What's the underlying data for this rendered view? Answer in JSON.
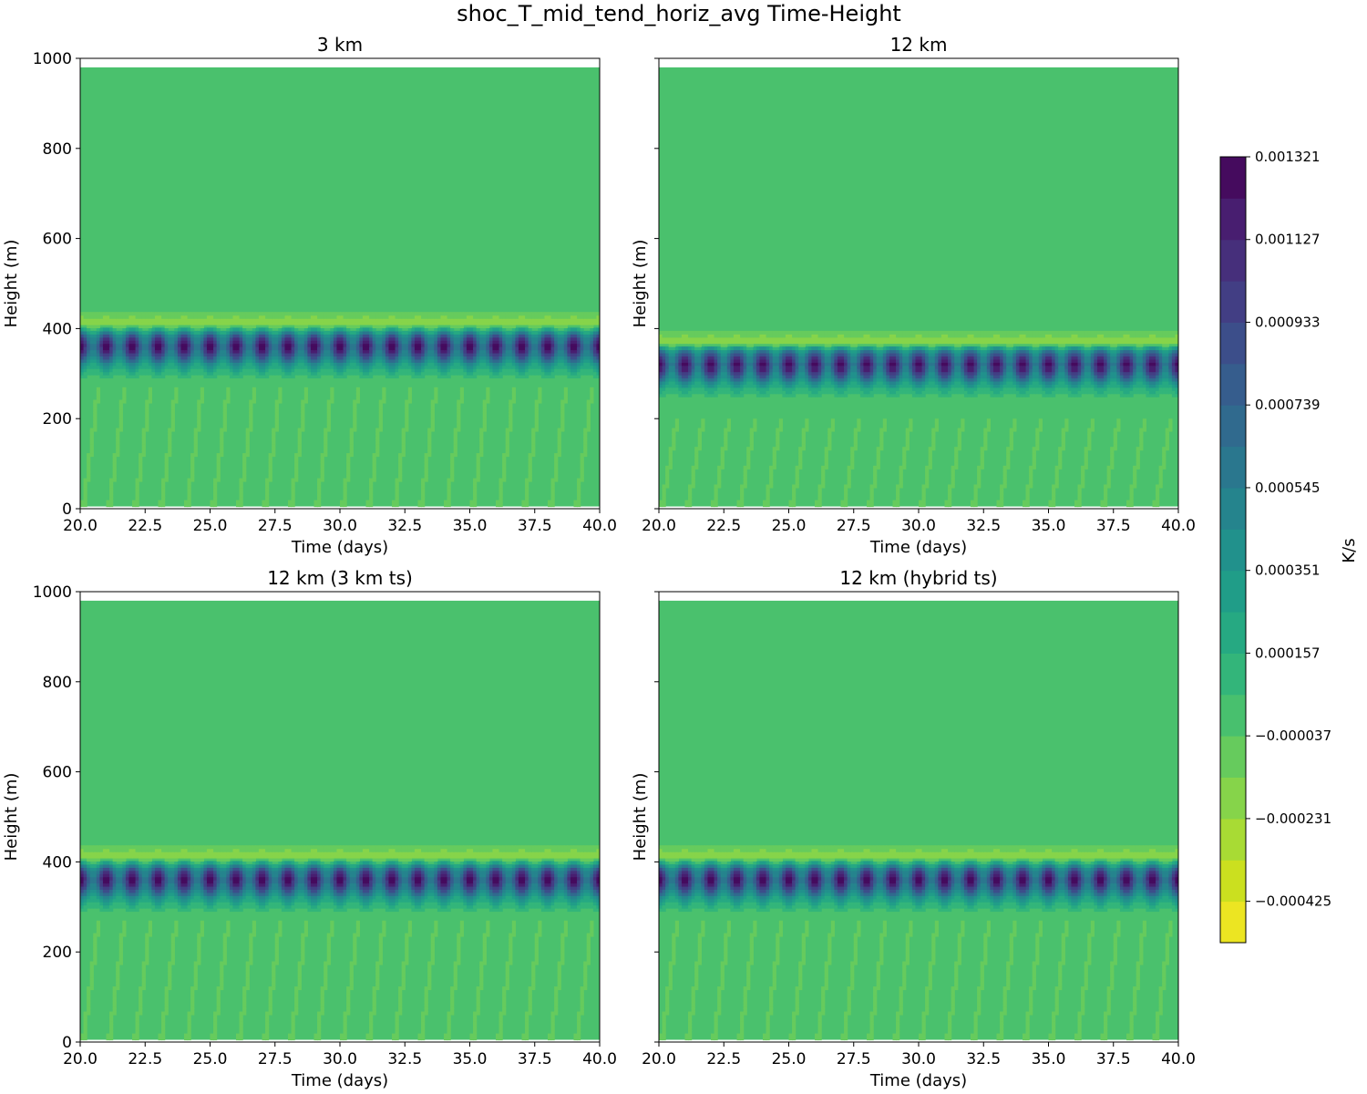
{
  "figure": {
    "suptitle": "shoc_T_mid_tend_horiz_avg Time-Height"
  },
  "chart_data": [
    {
      "type": "heatmap",
      "title": "3 km",
      "xlabel": "Time (days)",
      "ylabel": "Height (m)",
      "xlim": [
        20,
        40
      ],
      "ylim": [
        0,
        1000
      ],
      "xticks": [
        "20.0",
        "22.5",
        "25.0",
        "27.5",
        "30.0",
        "32.5",
        "35.0",
        "37.5",
        "40.0"
      ],
      "yticks": [
        "0",
        "200",
        "400",
        "600",
        "800",
        "1000"
      ],
      "domain_top": 980,
      "min_band": {
        "center": 410,
        "halfwidth": 22
      },
      "max_band": {
        "center": 363,
        "halfwidth": 45
      },
      "bottom_streak_top": 270,
      "oscillations": 20
    },
    {
      "type": "heatmap",
      "title": "12 km",
      "xlabel": "Time (days)",
      "ylabel": "Height (m)",
      "xlim": [
        20,
        40
      ],
      "ylim": [
        0,
        1000
      ],
      "xticks": [
        "20.0",
        "22.5",
        "25.0",
        "27.5",
        "30.0",
        "32.5",
        "35.0",
        "37.5",
        "40.0"
      ],
      "yticks": [
        "0",
        "200",
        "400",
        "600",
        "800",
        "1000"
      ],
      "domain_top": 980,
      "min_band": {
        "center": 370,
        "halfwidth": 20
      },
      "max_band": {
        "center": 322,
        "halfwidth": 45
      },
      "bottom_streak_top": 200,
      "oscillations": 20
    },
    {
      "type": "heatmap",
      "title": "12 km (3 km ts)",
      "xlabel": "Time (days)",
      "ylabel": "Height (m)",
      "xlim": [
        20,
        40
      ],
      "ylim": [
        0,
        1000
      ],
      "xticks": [
        "20.0",
        "22.5",
        "25.0",
        "27.5",
        "30.0",
        "32.5",
        "35.0",
        "37.5",
        "40.0"
      ],
      "yticks": [
        "0",
        "200",
        "400",
        "600",
        "800",
        "1000"
      ],
      "domain_top": 980,
      "min_band": {
        "center": 410,
        "halfwidth": 22
      },
      "max_band": {
        "center": 363,
        "halfwidth": 45
      },
      "bottom_streak_top": 270,
      "oscillations": 20
    },
    {
      "type": "heatmap",
      "title": "12 km (hybrid ts)",
      "xlabel": "Time (days)",
      "ylabel": "Height (m)",
      "xlim": [
        20,
        40
      ],
      "ylim": [
        0,
        1000
      ],
      "xticks": [
        "20.0",
        "22.5",
        "25.0",
        "27.5",
        "30.0",
        "32.5",
        "35.0",
        "37.5",
        "40.0"
      ],
      "yticks": [
        "0",
        "200",
        "400",
        "600",
        "800",
        "1000"
      ],
      "domain_top": 980,
      "min_band": {
        "center": 410,
        "halfwidth": 22
      },
      "max_band": {
        "center": 363,
        "halfwidth": 45
      },
      "bottom_streak_top": 270,
      "oscillations": 20
    }
  ],
  "colorbar": {
    "label": "K/s",
    "min": -0.000522,
    "max": 0.001321,
    "tick_values": [
      0.001321,
      0.001127,
      0.000933,
      0.000739,
      0.000545,
      0.000351,
      0.000157,
      -3.7e-05,
      -0.000231,
      -0.000425
    ],
    "tick_labels": [
      "0.001321",
      "0.001127",
      "0.000933",
      "0.000739",
      "0.000545",
      "0.000351",
      "0.000157",
      "−0.000037",
      "−0.000231",
      "−0.000425"
    ],
    "levels": 19,
    "colors": [
      "#fde725",
      "#d0e11c",
      "#a0da39",
      "#73d056",
      "#4ac16d",
      "#2db27d",
      "#1fa187",
      "#21918c",
      "#277f8e",
      "#2e6e8e",
      "#365c8d",
      "#3f4788",
      "#46327e",
      "#481c6e",
      "#440154"
    ],
    "background_color": "#4ac16d"
  }
}
